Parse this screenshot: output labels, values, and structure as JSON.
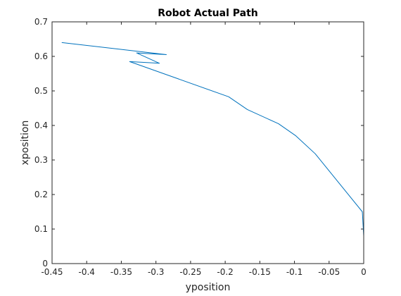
{
  "chart_data": {
    "type": "line",
    "title": "Robot Actual Path",
    "xlabel": "yposition",
    "ylabel": "xposition",
    "xlim": [
      -0.45,
      0
    ],
    "ylim": [
      0,
      0.7
    ],
    "xticks": [
      -0.45,
      -0.4,
      -0.35,
      -0.3,
      -0.25,
      -0.2,
      -0.15,
      -0.1,
      -0.05,
      0
    ],
    "xtick_labels": [
      "-0.45",
      "-0.4",
      "-0.35",
      "-0.3",
      "-0.25",
      "-0.2",
      "-0.15",
      "-0.1",
      "-0.05",
      "0"
    ],
    "yticks": [
      0,
      0.1,
      0.2,
      0.3,
      0.4,
      0.5,
      0.6,
      0.7
    ],
    "ytick_labels": [
      "0",
      "0.1",
      "0.2",
      "0.3",
      "0.4",
      "0.5",
      "0.6",
      "0.7"
    ],
    "grid": false,
    "series": [
      {
        "color": "#0072BD",
        "x": [
          0,
          0,
          -0.002,
          -0.07,
          -0.098,
          -0.123,
          -0.168,
          -0.195,
          -0.338,
          -0.295,
          -0.328,
          -0.285,
          -0.436
        ],
        "y": [
          0,
          0.08,
          0.15,
          0.318,
          0.37,
          0.405,
          0.446,
          0.483,
          0.585,
          0.58,
          0.61,
          0.605,
          0.64
        ]
      }
    ]
  }
}
